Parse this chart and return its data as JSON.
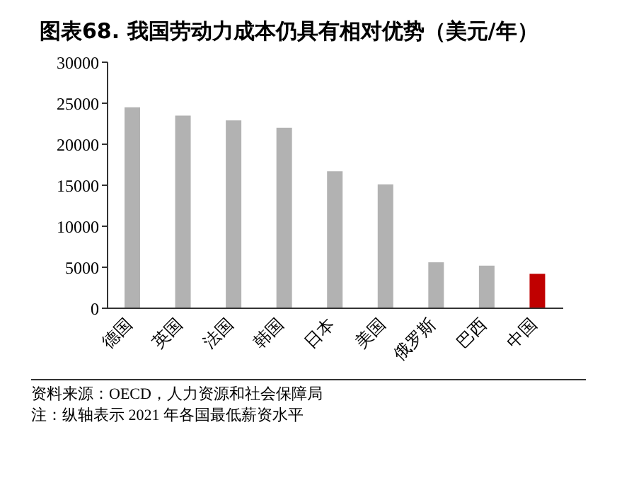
{
  "chart_data": {
    "type": "bar",
    "title": "图表68. 我国劳动力成本仍具有相对优势（美元/年）",
    "categories": [
      "德国",
      "英国",
      "法国",
      "韩国",
      "日本",
      "美国",
      "俄罗斯",
      "巴西",
      "中国"
    ],
    "values": [
      24500,
      23500,
      22900,
      22000,
      16700,
      15100,
      5600,
      5200,
      4200
    ],
    "colors": [
      "#b2b2b2",
      "#b2b2b2",
      "#b2b2b2",
      "#b2b2b2",
      "#b2b2b2",
      "#b2b2b2",
      "#b2b2b2",
      "#b2b2b2",
      "#c00000"
    ],
    "ylim": [
      0,
      30000
    ],
    "yticks": [
      0,
      5000,
      10000,
      15000,
      20000,
      25000,
      30000
    ],
    "grid": false,
    "legend": false,
    "annotations": [
      "资料来源：OECD，人力资源和社会保障局",
      "注：纵轴表示 2021 年各国最低薪资水平"
    ]
  }
}
